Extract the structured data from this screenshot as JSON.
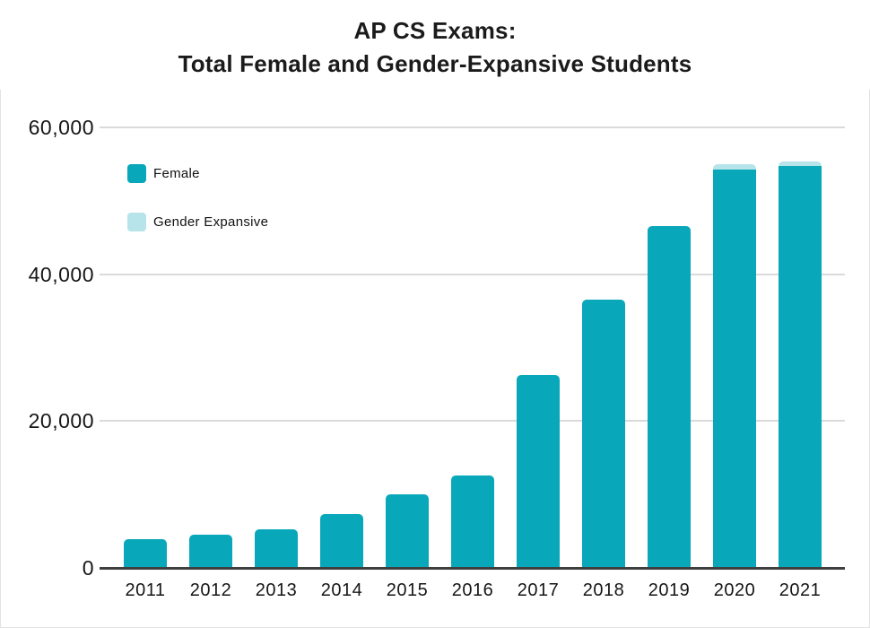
{
  "title_line1": "AP CS Exams:",
  "title_line2": "Total Female and Gender-Expansive Students",
  "chart_data": {
    "type": "bar",
    "stacked": true,
    "title": "AP CS Exams: Total Female and Gender-Expansive Students",
    "categories": [
      "2011",
      "2012",
      "2013",
      "2014",
      "2015",
      "2016",
      "2017",
      "2018",
      "2019",
      "2020",
      "2021"
    ],
    "series": [
      {
        "name": "Female",
        "color": "#09a7ba",
        "values": [
          3900,
          4500,
          5200,
          7300,
          10000,
          12600,
          26300,
          36500,
          46500,
          54300,
          54700
        ]
      },
      {
        "name": "Gender Expansive",
        "color": "#b7e4ea",
        "values": [
          0,
          0,
          0,
          0,
          0,
          0,
          0,
          0,
          0,
          700,
          600
        ]
      }
    ],
    "y_axis": {
      "max": 60000,
      "ticks": [
        {
          "value": 0,
          "label": "0"
        },
        {
          "value": 20000,
          "label": "20,000"
        },
        {
          "value": 40000,
          "label": "40,000"
        },
        {
          "value": 60000,
          "label": "60,000"
        }
      ]
    },
    "grid": true,
    "legend_position": "inside-top-left",
    "colors": {
      "gridline": "#dadada",
      "axis_line": "#3f3f3f",
      "text": "#161616",
      "frame_border": "#e2e2e2",
      "background": "#ffffff"
    }
  }
}
